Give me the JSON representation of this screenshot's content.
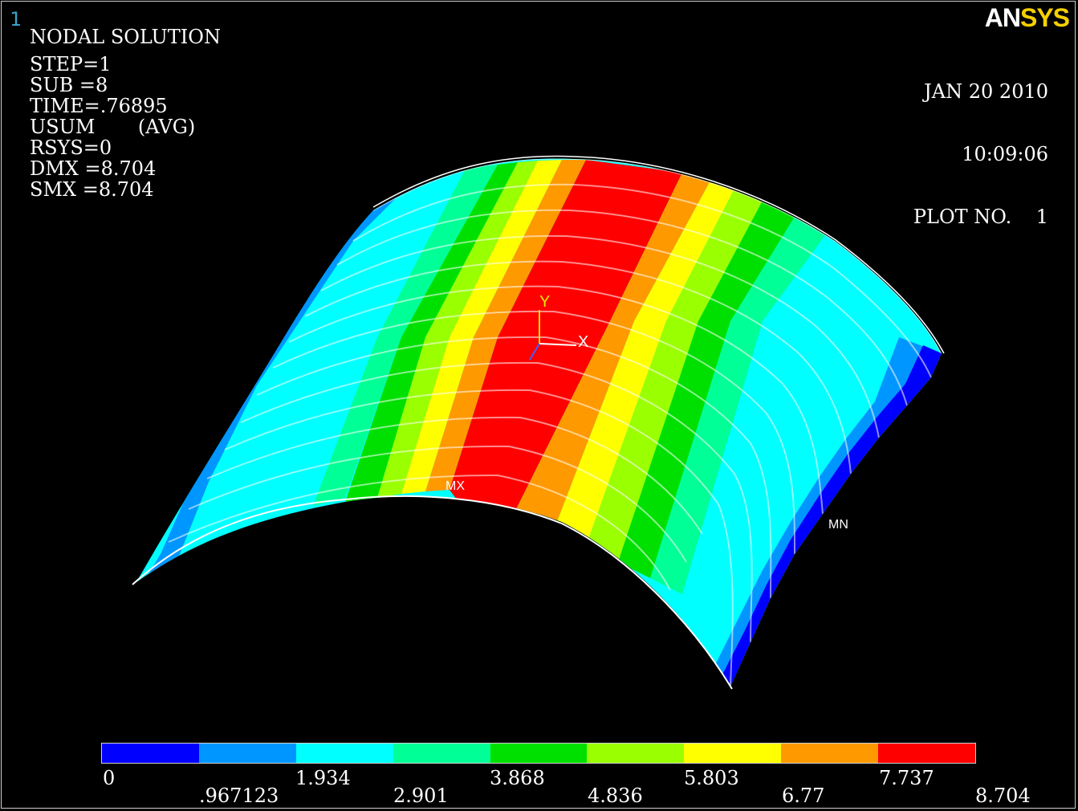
{
  "window_number": "1",
  "logo": {
    "an": "AN",
    "sys": "SYS"
  },
  "info_lines": [
    "NODAL SOLUTION",
    "",
    "STEP=1",
    "SUB =8",
    "TIME=.76895",
    "USUM       (AVG)",
    "RSYS=0",
    "DMX =8.704",
    "SMX =8.704"
  ],
  "stamp": {
    "date": "JAN 20 2010",
    "time": "10:09:06",
    "plot": "PLOT NO.    1"
  },
  "markers": {
    "max": "MX",
    "min": "MN"
  },
  "triad": {
    "x": "X",
    "y": "Y"
  },
  "legend": {
    "colors": [
      "#0000ff",
      "#0096ff",
      "#00ffff",
      "#00ff96",
      "#00e000",
      "#9aff00",
      "#ffff00",
      "#ff9900",
      "#ff0000"
    ],
    "labels_upper": [
      "0",
      "1.934",
      "3.868",
      "5.803",
      "7.737"
    ],
    "labels_lower": [
      ".967123",
      "2.901",
      "4.836",
      "6.77",
      "8.704"
    ]
  },
  "contour_colors": {
    "blue": "#0000ff",
    "light_blue": "#0096ff",
    "cyan": "#00ffff",
    "aqua_green": "#00ff96",
    "green": "#00e000",
    "yellow_green": "#9aff00",
    "yellow": "#ffff00",
    "orange": "#ff9900",
    "red": "#ff0000"
  }
}
